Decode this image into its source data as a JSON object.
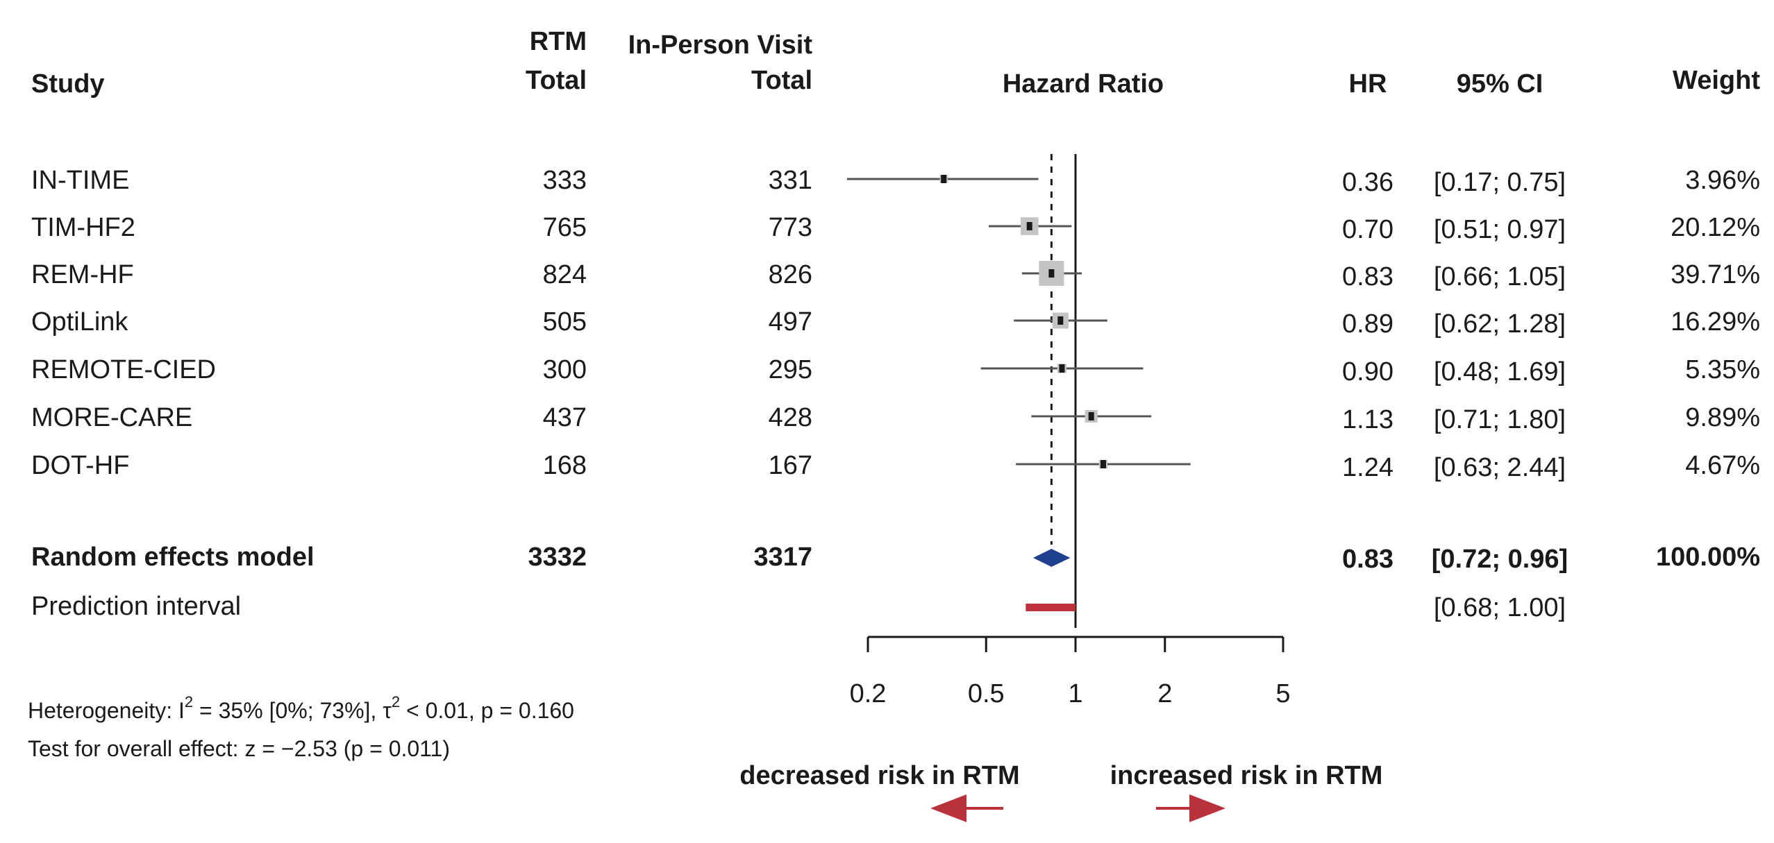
{
  "chart_data": {
    "type": "forest",
    "xlabel": "Hazard Ratio",
    "x_scale": "log",
    "xlim": [
      0.2,
      5
    ],
    "xticks": [
      0.2,
      0.5,
      1,
      2,
      5
    ],
    "xtick_labels": [
      "0.2",
      "0.5",
      "1",
      "2",
      "5"
    ],
    "reference_line": 1,
    "pooled_line": 0.83,
    "headers": {
      "study": "Study",
      "rtm_1": "RTM",
      "rtm_2": "Total",
      "ipv_1": "In-Person Visit",
      "ipv_2": "Total",
      "hazard": "Hazard Ratio",
      "hr": "HR",
      "ci": "95% CI",
      "weight": "Weight"
    },
    "studies": [
      {
        "name": "IN-TIME",
        "rtm": "333",
        "ipv": "331",
        "hr": 0.36,
        "lo": 0.17,
        "hi": 0.75,
        "hr_text": "0.36",
        "ci_text": "[0.17; 0.75]",
        "weight_text": "3.96%",
        "weight": 3.96
      },
      {
        "name": "TIM-HF2",
        "rtm": "765",
        "ipv": "773",
        "hr": 0.7,
        "lo": 0.51,
        "hi": 0.97,
        "hr_text": "0.70",
        "ci_text": "[0.51; 0.97]",
        "weight_text": "20.12%",
        "weight": 20.12
      },
      {
        "name": "REM-HF",
        "rtm": "824",
        "ipv": "826",
        "hr": 0.83,
        "lo": 0.66,
        "hi": 1.05,
        "hr_text": "0.83",
        "ci_text": "[0.66; 1.05]",
        "weight_text": "39.71%",
        "weight": 39.71
      },
      {
        "name": "OptiLink",
        "rtm": "505",
        "ipv": "497",
        "hr": 0.89,
        "lo": 0.62,
        "hi": 1.28,
        "hr_text": "0.89",
        "ci_text": "[0.62; 1.28]",
        "weight_text": "16.29%",
        "weight": 16.29
      },
      {
        "name": "REMOTE-CIED",
        "rtm": "300",
        "ipv": "295",
        "hr": 0.9,
        "lo": 0.48,
        "hi": 1.69,
        "hr_text": "0.90",
        "ci_text": "[0.48; 1.69]",
        "weight_text": "5.35%",
        "weight": 5.35
      },
      {
        "name": "MORE-CARE",
        "rtm": "437",
        "ipv": "428",
        "hr": 1.13,
        "lo": 0.71,
        "hi": 1.8,
        "hr_text": "1.13",
        "ci_text": "[0.71; 1.80]",
        "weight_text": "9.89%",
        "weight": 9.89
      },
      {
        "name": "DOT-HF",
        "rtm": "168",
        "ipv": "167",
        "hr": 1.24,
        "lo": 0.63,
        "hi": 2.44,
        "hr_text": "1.24",
        "ci_text": "[0.63; 2.44]",
        "weight_text": "4.67%",
        "weight": 4.67
      }
    ],
    "pooled": {
      "name": "Random effects model",
      "rtm": "3332",
      "ipv": "3317",
      "hr": 0.83,
      "lo": 0.72,
      "hi": 0.96,
      "hr_text": "0.83",
      "ci_text": "[0.72; 0.96]",
      "weight_text": "100.00%"
    },
    "prediction": {
      "name": "Prediction interval",
      "lo": 0.68,
      "hi": 1.0,
      "ci_text": "[0.68; 1.00]"
    },
    "heterogeneity": {
      "prefix": "Heterogeneity: I",
      "sup1": "2",
      "mid": " = 35% [0%; 73%], τ",
      "sup2": "2",
      "suffix": " < 0.01, p = 0.160"
    },
    "overall_test": "Test for overall effect: z = −2.53 (p = 0.011)",
    "direction": {
      "left": "decreased risk in RTM",
      "right": "increased risk in RTM"
    },
    "colors": {
      "text": "#1a1a1a",
      "study_box": "#c4c4c4",
      "pooled_diamond": "#1f3f8f",
      "prediction_bar": "#c0303a",
      "arrow": "#b8323c",
      "line": "#1a1a1a",
      "ci_line": "#555555"
    }
  }
}
